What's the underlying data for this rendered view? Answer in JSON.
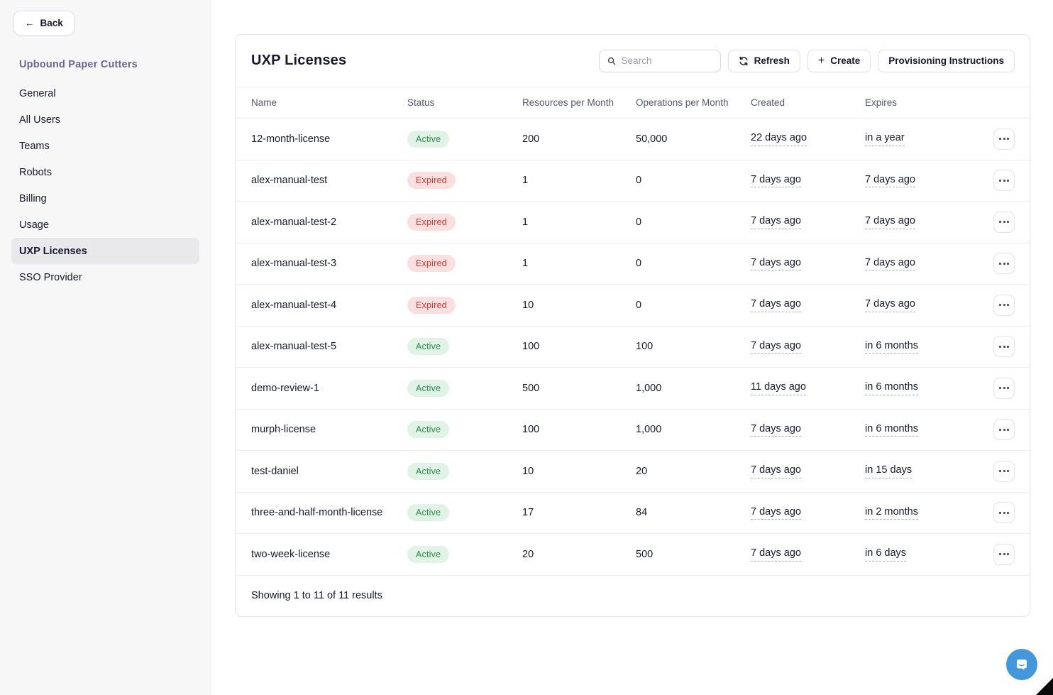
{
  "sidebar": {
    "back_label": "Back",
    "title": "Upbound Paper Cutters",
    "items": [
      {
        "label": "General",
        "active": false
      },
      {
        "label": "All Users",
        "active": false
      },
      {
        "label": "Teams",
        "active": false
      },
      {
        "label": "Robots",
        "active": false
      },
      {
        "label": "Billing",
        "active": false
      },
      {
        "label": "Usage",
        "active": false
      },
      {
        "label": "UXP Licenses",
        "active": true
      },
      {
        "label": "SSO Provider",
        "active": false
      }
    ]
  },
  "header": {
    "title": "UXP Licenses",
    "search_placeholder": "Search",
    "refresh_label": "Refresh",
    "create_label": "Create",
    "provisioning_label": "Provisioning Instructions"
  },
  "table": {
    "columns": [
      "Name",
      "Status",
      "Resources per Month",
      "Operations per Month",
      "Created",
      "Expires"
    ],
    "rows": [
      {
        "name": "12-month-license",
        "status": "Active",
        "resources": "200",
        "operations": "50,000",
        "created": "22 days ago",
        "expires": "in a year"
      },
      {
        "name": "alex-manual-test",
        "status": "Expired",
        "resources": "1",
        "operations": "0",
        "created": "7 days ago",
        "expires": "7 days ago"
      },
      {
        "name": "alex-manual-test-2",
        "status": "Expired",
        "resources": "1",
        "operations": "0",
        "created": "7 days ago",
        "expires": "7 days ago"
      },
      {
        "name": "alex-manual-test-3",
        "status": "Expired",
        "resources": "1",
        "operations": "0",
        "created": "7 days ago",
        "expires": "7 days ago"
      },
      {
        "name": "alex-manual-test-4",
        "status": "Expired",
        "resources": "10",
        "operations": "0",
        "created": "7 days ago",
        "expires": "7 days ago"
      },
      {
        "name": "alex-manual-test-5",
        "status": "Active",
        "resources": "100",
        "operations": "100",
        "created": "7 days ago",
        "expires": "in 6 months"
      },
      {
        "name": "demo-review-1",
        "status": "Active",
        "resources": "500",
        "operations": "1,000",
        "created": "11 days ago",
        "expires": "in 6 months"
      },
      {
        "name": "murph-license",
        "status": "Active",
        "resources": "100",
        "operations": "1,000",
        "created": "7 days ago",
        "expires": "in 6 months"
      },
      {
        "name": "test-daniel",
        "status": "Active",
        "resources": "10",
        "operations": "20",
        "created": "7 days ago",
        "expires": "in 15 days"
      },
      {
        "name": "three-and-half-month-license",
        "status": "Active",
        "resources": "17",
        "operations": "84",
        "created": "7 days ago",
        "expires": "in 2 months"
      },
      {
        "name": "two-week-license",
        "status": "Active",
        "resources": "20",
        "operations": "500",
        "created": "7 days ago",
        "expires": "in 6 days"
      }
    ],
    "footer_text": "Showing 1 to 11 of 11 results"
  },
  "icons": {
    "back_arrow": "←",
    "create_plus": "+",
    "search": "magnifier-icon",
    "refresh": "circular-arrows-icon",
    "row_menu": "ellipsis-icon",
    "chat": "speech-bubble-smile-icon"
  },
  "colors": {
    "active_badge_bg": "#e1f2e7",
    "active_badge_text": "#2a8c4a",
    "expired_badge_bg": "#fcdfdf",
    "expired_badge_text": "#d8372f",
    "chat_button": "#4596db",
    "sidebar_bg": "#f7f7f8",
    "selected_nav_bg": "#e9e9ec",
    "sidebar_title_text": "#68688c"
  }
}
